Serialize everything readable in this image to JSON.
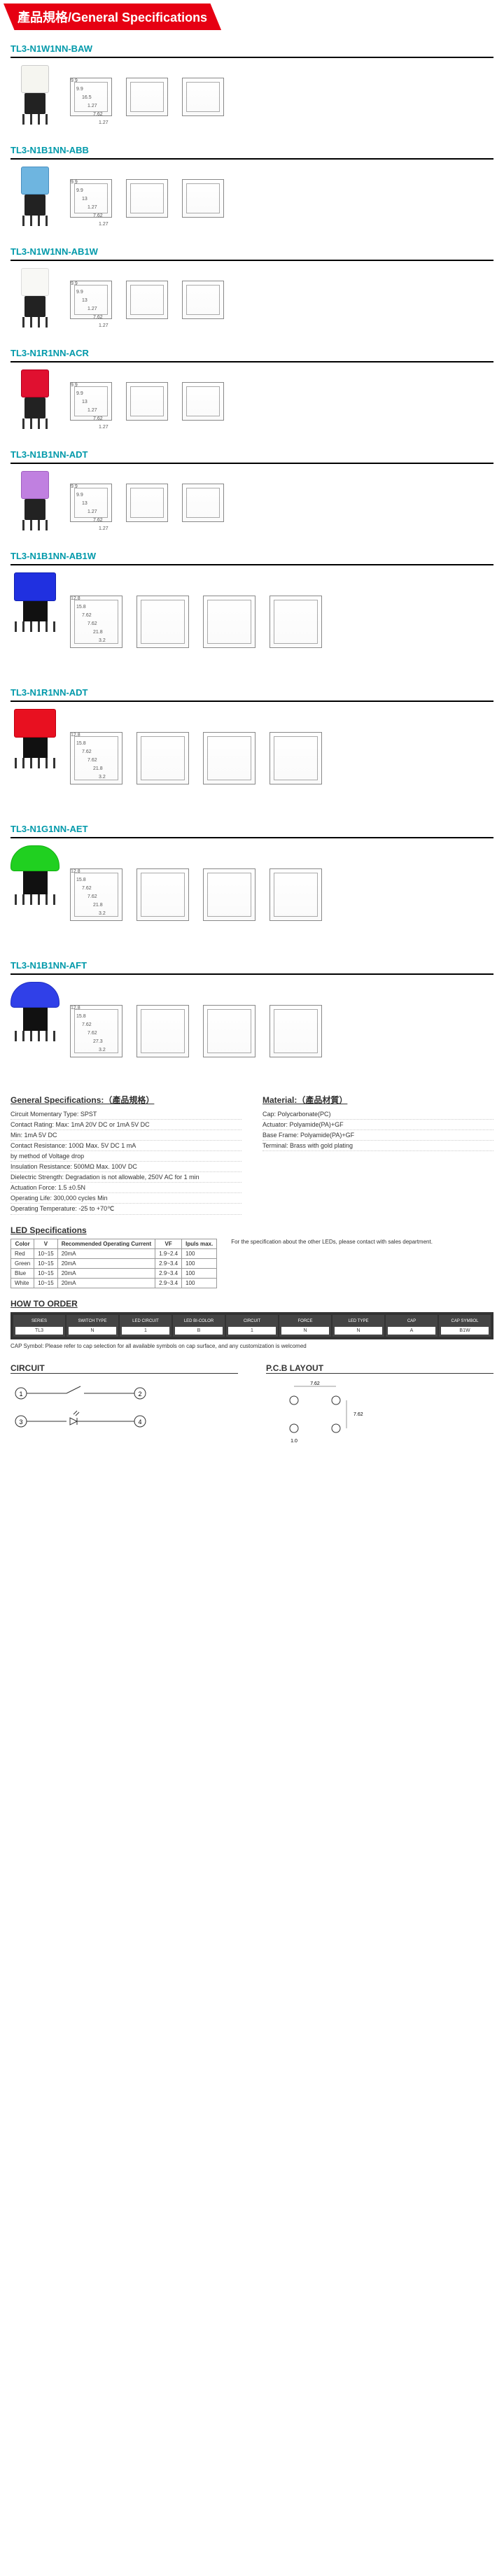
{
  "header": "產品規格/General Specifications",
  "products": [
    {
      "pn": "TL3-N1W1NN-BAW",
      "cap_color": "#f5f5f0",
      "cap_border": "#ccc",
      "size": "sm",
      "dims": [
        "9.9",
        "9.9",
        "16.5",
        "1.27",
        "7.62",
        "1.27"
      ]
    },
    {
      "pn": "TL3-N1B1NN-ABB",
      "cap_color": "#6eb5e0",
      "cap_border": "#4a8fc0",
      "size": "sm",
      "dims": [
        "9.9",
        "9.9",
        "13",
        "1.27",
        "7.62",
        "1.27"
      ]
    },
    {
      "pn": "TL3-N1W1NN-AB1W",
      "cap_color": "#f8f8f5",
      "cap_border": "#ddd",
      "size": "sm",
      "dims": [
        "9.9",
        "9.9",
        "13",
        "1.27",
        "7.62",
        "1.27"
      ]
    },
    {
      "pn": "TL3-N1R1NN-ACR",
      "cap_color": "#e01030",
      "cap_border": "#b00020",
      "size": "sm",
      "dims": [
        "9.9",
        "9.9",
        "13",
        "1.27",
        "7.62",
        "1.27"
      ]
    },
    {
      "pn": "TL3-N1B1NN-ADT",
      "cap_color": "#c080e0",
      "cap_border": "#a060c0",
      "size": "sm",
      "dims": [
        "9.9",
        "9.9",
        "13",
        "1.27",
        "7.62",
        "1.27"
      ]
    },
    {
      "pn": "TL3-N1B1NN-AB1W",
      "cap_color": "#2030e0",
      "cap_border": "#1020b0",
      "size": "lg",
      "dims": [
        "12.8",
        "15.8",
        "7.62",
        "7.62",
        "21.8",
        "3.2"
      ]
    },
    {
      "pn": "TL3-N1R1NN-ADT",
      "cap_color": "#e81020",
      "cap_border": "#c00010",
      "size": "lg",
      "shape": "dome_sm",
      "dims": [
        "12.8",
        "15.8",
        "7.62",
        "7.62",
        "21.8",
        "3.2"
      ]
    },
    {
      "pn": "TL3-N1G1NN-AET",
      "cap_color": "#20d020",
      "cap_border": "#10b010",
      "size": "lg",
      "shape": "dome",
      "dims": [
        "12.8",
        "15.8",
        "7.62",
        "7.62",
        "21.8",
        "3.2"
      ]
    },
    {
      "pn": "TL3-N1B1NN-AFT",
      "cap_color": "#3040e8",
      "cap_border": "#2030c0",
      "size": "lg",
      "shape": "dome",
      "dims": [
        "12.8",
        "15.8",
        "7.62",
        "7.62",
        "27.3",
        "3.2"
      ]
    }
  ],
  "gen_spec_title": "General Specifications:（產品規格）",
  "mat_title": "Material:（產品材質）",
  "gen_specs": [
    "Circuit Momentary Type: SPST",
    "Contact Rating: Max: 1mA 20V DC or 1mA 5V DC",
    "Min: 1mA 5V DC",
    "Contact Resistance: 100Ω Max. 5V DC 1 mA",
    "by method of Voltage drop",
    "Insulation Resistance: 500MΩ Max. 100V DC",
    "Dielectric Strength: Degradation is not allowable, 250V AC for 1 min",
    "Actuation Force: 1.5 ±0.5N",
    "Operating Life: 300,000 cycles Min",
    "Operating Temperature: -25 to +70℃"
  ],
  "materials": [
    "Cap: Polycarbonate(PC)",
    "Actuator: Polyamide(PA)+GF",
    "Base Frame: Polyamide(PA)+GF",
    "Terminal: Brass with gold plating"
  ],
  "led_title": "LED Specifications",
  "led_cols": [
    "Color",
    "V",
    "Recommended Operating Current",
    "VF",
    "Ipuls max."
  ],
  "led_rows": [
    [
      "Red",
      "10~15",
      "20mA",
      "1.9~2.4",
      "100"
    ],
    [
      "Green",
      "10~15",
      "20mA",
      "2.9~3.4",
      "100"
    ],
    [
      "Blue",
      "10~15",
      "20mA",
      "2.9~3.4",
      "100"
    ],
    [
      "White",
      "10~15",
      "20mA",
      "2.9~3.4",
      "100"
    ]
  ],
  "led_note": "For the specification about the other LEDs, please contact with sales department.",
  "howto_title": "HOW TO ORDER",
  "howto_cols": [
    "SERIES",
    "SWITCH TYPE",
    "LED CIRCUIT",
    "LED BI-COLOR",
    "CIRCUIT",
    "FORCE",
    "LED TYPE",
    "CAP",
    "CAP SYMBOL"
  ],
  "howto_vals": [
    "TL3",
    "N",
    "1",
    "B",
    "1",
    "N",
    "N",
    "A",
    "B1W"
  ],
  "cap_note": "CAP Symbol: Please refer to cap selection for all available symbols on cap surface, and any customization is welcomed",
  "circuit_title": "CIRCUIT",
  "pcb_title": "P.C.B LAYOUT",
  "pcb_dims": [
    "7.62",
    "7.62",
    "5.0",
    "1.0"
  ],
  "colors": {
    "teal": "#0099aa",
    "red_hdr": "#e60012"
  }
}
